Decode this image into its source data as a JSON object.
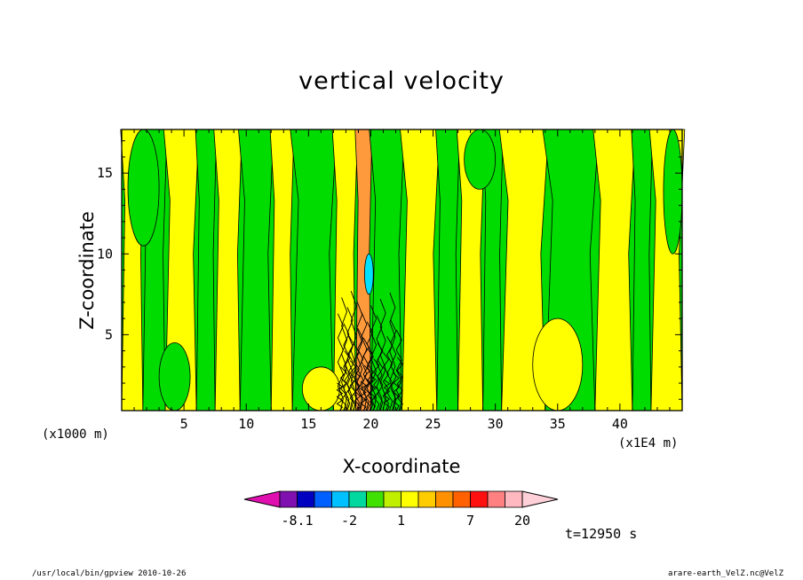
{
  "chart_data": {
    "type": "heatmap",
    "title": "vertical velocity",
    "xlabel": "X-coordinate",
    "ylabel": "Z-coordinate",
    "x_unit": "(x1E4 m)",
    "z_unit": "(x1000 m)",
    "xlim": [
      0,
      45
    ],
    "ylim": [
      0.3,
      17.7
    ],
    "xticks": [
      5,
      10,
      15,
      20,
      25,
      30,
      35,
      40
    ],
    "yticks": [
      5,
      10,
      15
    ],
    "colorbar": {
      "colors": [
        "#e010b0",
        "#8010b0",
        "#0000c0",
        "#0060ff",
        "#00c0ff",
        "#00d8a0",
        "#40e000",
        "#c0f000",
        "#ffff00",
        "#ffcc00",
        "#ff9000",
        "#ff6000",
        "#ff1010",
        "#ff8080",
        "#ffb8c0",
        "#ffd0d8"
      ],
      "labels": [
        {
          "text": "-8.1",
          "after_bin": 1
        },
        {
          "text": "-2",
          "after_bin": 4
        },
        {
          "text": "1",
          "after_bin": 7
        },
        {
          "text": "7",
          "after_bin": 11
        },
        {
          "text": "20",
          "after_bin": 14
        }
      ]
    },
    "background_levels": {
      "green": "#00dc00",
      "yellow": "#ffff00",
      "orange": "#ff9a3c",
      "cyan": "#00e0ff"
    },
    "columns": [
      {
        "x0": 0.0,
        "x1": 1.7,
        "color": "yellow"
      },
      {
        "x0": 1.7,
        "x1": 3.5,
        "color": "green"
      },
      {
        "x0": 3.5,
        "x1": 6.0,
        "color": "yellow"
      },
      {
        "x0": 6.0,
        "x1": 7.5,
        "color": "green"
      },
      {
        "x0": 7.5,
        "x1": 9.5,
        "color": "yellow"
      },
      {
        "x0": 9.5,
        "x1": 12.0,
        "color": "green"
      },
      {
        "x0": 12.0,
        "x1": 13.7,
        "color": "yellow"
      },
      {
        "x0": 13.7,
        "x1": 17.0,
        "color": "green"
      },
      {
        "x0": 17.0,
        "x1": 18.8,
        "color": "yellow"
      },
      {
        "x0": 18.8,
        "x1": 20.0,
        "color": "orange"
      },
      {
        "x0": 20.0,
        "x1": 22.5,
        "color": "green"
      },
      {
        "x0": 22.5,
        "x1": 25.3,
        "color": "yellow"
      },
      {
        "x0": 25.3,
        "x1": 27.0,
        "color": "green"
      },
      {
        "x0": 27.0,
        "x1": 29.0,
        "color": "yellow"
      },
      {
        "x0": 29.0,
        "x1": 30.5,
        "color": "green"
      },
      {
        "x0": 30.5,
        "x1": 34.0,
        "color": "yellow"
      },
      {
        "x0": 34.0,
        "x1": 38.0,
        "color": "green"
      },
      {
        "x0": 38.0,
        "x1": 41.0,
        "color": "yellow"
      },
      {
        "x0": 41.0,
        "x1": 42.5,
        "color": "green"
      },
      {
        "x0": 42.5,
        "x1": 45.0,
        "color": "yellow"
      }
    ],
    "patches": [
      {
        "x0": 0.5,
        "x1": 3.0,
        "z0": 10.5,
        "z1": 17.7,
        "color": "green"
      },
      {
        "x0": 3.0,
        "x1": 5.5,
        "z0": 0.3,
        "z1": 4.5,
        "color": "green"
      },
      {
        "x0": 14.5,
        "x1": 17.5,
        "z0": 0.3,
        "z1": 3.0,
        "color": "yellow"
      },
      {
        "x0": 19.5,
        "x1": 20.2,
        "z0": 7.5,
        "z1": 10.0,
        "color": "cyan"
      },
      {
        "x0": 27.5,
        "x1": 30.0,
        "z0": 14.0,
        "z1": 17.7,
        "color": "green"
      },
      {
        "x0": 33.0,
        "x1": 37.0,
        "z0": 0.3,
        "z1": 6.0,
        "color": "yellow"
      },
      {
        "x0": 43.5,
        "x1": 45.0,
        "z0": 10.0,
        "z1": 17.7,
        "color": "green"
      }
    ]
  },
  "footer": {
    "time_label": "t=12950 s",
    "left": "/usr/local/bin/gpview  2010-10-26",
    "right": "arare-earth_VelZ.nc@VelZ"
  }
}
